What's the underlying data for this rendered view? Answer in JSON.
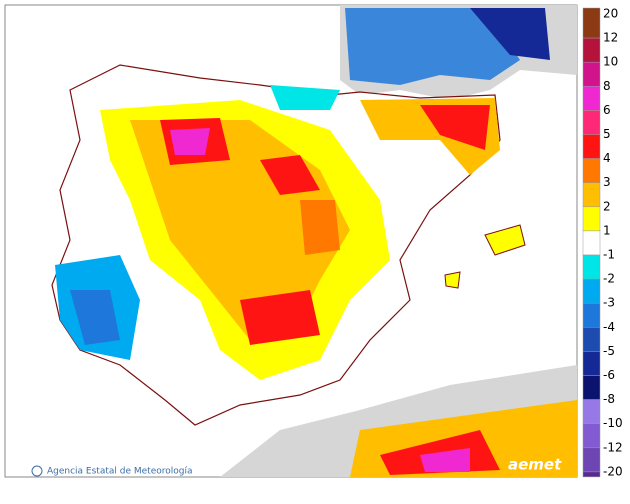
{
  "legend": {
    "entries": [
      {
        "label": "20",
        "color": "#8b3a14"
      },
      {
        "label": "12",
        "color": "#b4143c"
      },
      {
        "label": "10",
        "color": "#d2148c"
      },
      {
        "label": "8",
        "color": "#f028d2"
      },
      {
        "label": "6",
        "color": "#ff2878"
      },
      {
        "label": "5",
        "color": "#ff1414"
      },
      {
        "label": "4",
        "color": "#ff7800"
      },
      {
        "label": "3",
        "color": "#ffbe00"
      },
      {
        "label": "2",
        "color": "#ffff00"
      },
      {
        "label": "1",
        "color": "#ffffff"
      },
      {
        "label": "-1",
        "color": "#00e6e6"
      },
      {
        "label": "-2",
        "color": "#00aaf0"
      },
      {
        "label": "-3",
        "color": "#1e78dc"
      },
      {
        "label": "-4",
        "color": "#1e4baf"
      },
      {
        "label": "-5",
        "color": "#142896"
      },
      {
        "label": "-6",
        "color": "#0a146e"
      },
      {
        "label": "-8",
        "color": "#9678e6"
      },
      {
        "label": "-10",
        "color": "#825ad2"
      },
      {
        "label": "-12",
        "color": "#6e46b4"
      },
      {
        "label": "-20",
        "color": "#5a2896"
      }
    ]
  },
  "footer": {
    "credit": "Agencia Estatal de Meteorología",
    "logo": "aemet"
  }
}
